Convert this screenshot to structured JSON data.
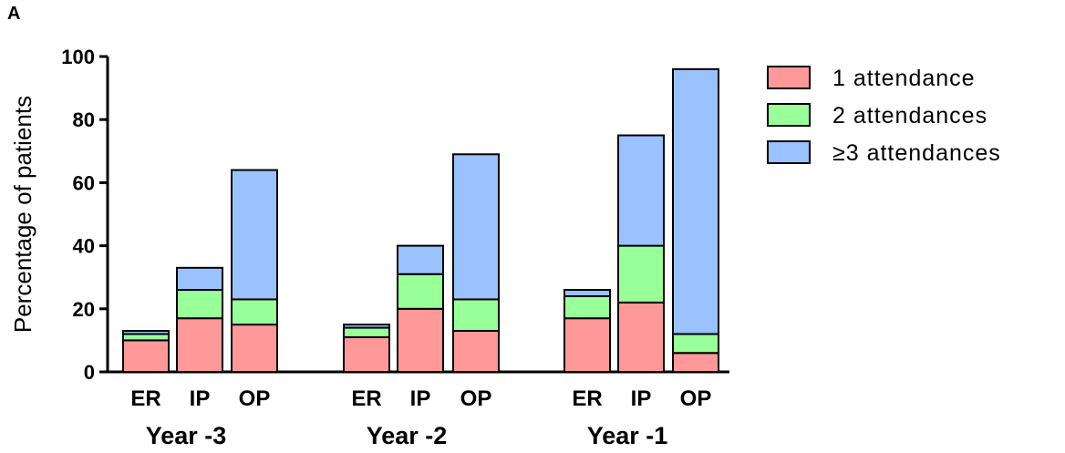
{
  "panel_label": "A",
  "chart_data": {
    "type": "bar",
    "stacked": true,
    "ylabel": "Percentage of patients",
    "ylim": [
      0,
      100
    ],
    "yticks": [
      0,
      20,
      40,
      60,
      80,
      100
    ],
    "groups": [
      {
        "label": "Year -3",
        "categories": [
          "ER",
          "IP",
          "OP"
        ]
      },
      {
        "label": "Year -2",
        "categories": [
          "ER",
          "IP",
          "OP"
        ]
      },
      {
        "label": "Year -1",
        "categories": [
          "ER",
          "IP",
          "OP"
        ]
      }
    ],
    "categories": [
      "ER",
      "IP",
      "OP",
      "ER",
      "IP",
      "OP",
      "ER",
      "IP",
      "OP"
    ],
    "series": [
      {
        "name": "1 attendance",
        "color": "#ff9999",
        "values": [
          10,
          17,
          15,
          11,
          20,
          13,
          17,
          22,
          6
        ]
      },
      {
        "name": "2 attendances",
        "color": "#99ff99",
        "values": [
          2,
          9,
          8,
          3,
          11,
          10,
          7,
          18,
          6
        ]
      },
      {
        "name": "≥3 attendances",
        "color": "#99c2ff",
        "values": [
          1,
          7,
          41,
          1,
          9,
          46,
          2,
          35,
          84
        ]
      }
    ],
    "legend_position": "top-right",
    "grid": false
  }
}
